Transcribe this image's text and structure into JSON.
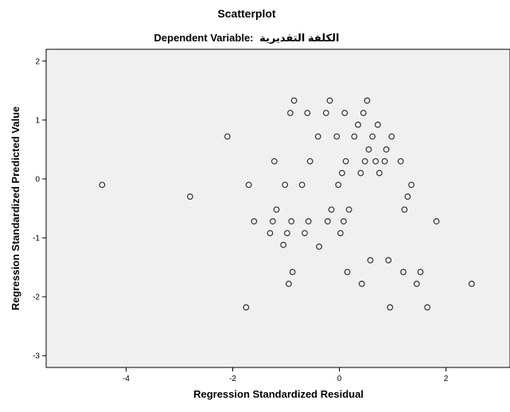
{
  "chart_data": {
    "type": "scatter",
    "title": "Scatterplot",
    "subtitle_prefix": "Dependent Variable:",
    "subtitle_variable": "الكلفة التقديرية",
    "xlabel": "Regression Standardized Residual",
    "ylabel": "Regression Standardized Predicted Value",
    "xlim": [
      -5.5,
      3.2
    ],
    "ylim": [
      -3.2,
      2.2
    ],
    "xticks": [
      -4,
      -2,
      0,
      2
    ],
    "xtick_labels": [
      "-4",
      "-2",
      "0",
      "2"
    ],
    "yticks": [
      2,
      1,
      0,
      -1,
      -2,
      -3
    ],
    "ytick_labels": [
      "2",
      "1",
      "0",
      "-1",
      "-2",
      "-3"
    ],
    "grid": false,
    "plot_background": "#f0f0f0",
    "marker_color": "#333333",
    "points": [
      {
        "x": -4.45,
        "y": -0.1
      },
      {
        "x": -2.8,
        "y": -0.3
      },
      {
        "x": -2.1,
        "y": 0.72
      },
      {
        "x": -1.75,
        "y": -2.18
      },
      {
        "x": -1.7,
        "y": -0.1
      },
      {
        "x": -1.6,
        "y": -0.72
      },
      {
        "x": -1.3,
        "y": -0.92
      },
      {
        "x": -1.25,
        "y": -0.72
      },
      {
        "x": -1.22,
        "y": 0.3
      },
      {
        "x": -1.18,
        "y": -0.52
      },
      {
        "x": -1.05,
        "y": -1.12
      },
      {
        "x": -1.02,
        "y": -0.1
      },
      {
        "x": -0.98,
        "y": -0.92
      },
      {
        "x": -0.95,
        "y": -1.78
      },
      {
        "x": -0.92,
        "y": 1.12
      },
      {
        "x": -0.9,
        "y": -0.72
      },
      {
        "x": -0.88,
        "y": -1.58
      },
      {
        "x": -0.85,
        "y": 1.33
      },
      {
        "x": -0.7,
        "y": -0.1
      },
      {
        "x": -0.65,
        "y": -0.92
      },
      {
        "x": -0.6,
        "y": 1.12
      },
      {
        "x": -0.58,
        "y": -0.72
      },
      {
        "x": -0.55,
        "y": 0.3
      },
      {
        "x": -0.4,
        "y": 0.72
      },
      {
        "x": -0.38,
        "y": -1.15
      },
      {
        "x": -0.25,
        "y": 1.12
      },
      {
        "x": -0.22,
        "y": -0.72
      },
      {
        "x": -0.18,
        "y": 1.33
      },
      {
        "x": -0.15,
        "y": -0.52
      },
      {
        "x": -0.05,
        "y": 0.72
      },
      {
        "x": -0.02,
        "y": -0.1
      },
      {
        "x": 0.02,
        "y": -0.92
      },
      {
        "x": 0.05,
        "y": 0.1
      },
      {
        "x": 0.08,
        "y": -0.72
      },
      {
        "x": 0.1,
        "y": 1.12
      },
      {
        "x": 0.12,
        "y": 0.3
      },
      {
        "x": 0.15,
        "y": -1.58
      },
      {
        "x": 0.18,
        "y": -0.52
      },
      {
        "x": 0.28,
        "y": 0.72
      },
      {
        "x": 0.35,
        "y": 0.92
      },
      {
        "x": 0.4,
        "y": 0.1
      },
      {
        "x": 0.42,
        "y": -1.78
      },
      {
        "x": 0.45,
        "y": 1.12
      },
      {
        "x": 0.48,
        "y": 0.3
      },
      {
        "x": 0.52,
        "y": 1.33
      },
      {
        "x": 0.55,
        "y": 0.5
      },
      {
        "x": 0.58,
        "y": -1.38
      },
      {
        "x": 0.62,
        "y": 0.72
      },
      {
        "x": 0.68,
        "y": 0.3
      },
      {
        "x": 0.72,
        "y": 0.92
      },
      {
        "x": 0.75,
        "y": 0.1
      },
      {
        "x": 0.85,
        "y": 0.3
      },
      {
        "x": 0.88,
        "y": 0.5
      },
      {
        "x": 0.92,
        "y": -1.38
      },
      {
        "x": 0.95,
        "y": -2.18
      },
      {
        "x": 0.98,
        "y": 0.72
      },
      {
        "x": 1.15,
        "y": 0.3
      },
      {
        "x": 1.2,
        "y": -1.58
      },
      {
        "x": 1.22,
        "y": -0.52
      },
      {
        "x": 1.28,
        "y": -0.3
      },
      {
        "x": 1.35,
        "y": -0.1
      },
      {
        "x": 1.45,
        "y": -1.78
      },
      {
        "x": 1.52,
        "y": -1.58
      },
      {
        "x": 1.65,
        "y": -2.18
      },
      {
        "x": 1.82,
        "y": -0.72
      },
      {
        "x": 2.48,
        "y": -1.78
      }
    ]
  }
}
